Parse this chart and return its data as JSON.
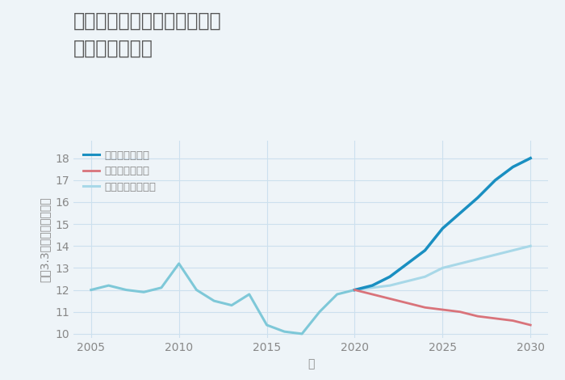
{
  "title": "三重県三重郡川越町当新田の\n土地の価格推移",
  "xlabel": "年",
  "ylabel": "坪（3.3㎡）単価（万円）",
  "background_color": "#eef4f8",
  "plot_background": "#eef4f8",
  "ylim": [
    9.8,
    18.8
  ],
  "xlim": [
    2004,
    2031
  ],
  "yticks": [
    10,
    11,
    12,
    13,
    14,
    15,
    16,
    17,
    18
  ],
  "xticks": [
    2005,
    2010,
    2015,
    2020,
    2025,
    2030
  ],
  "historical_years": [
    2005,
    2006,
    2007,
    2008,
    2009,
    2010,
    2011,
    2012,
    2013,
    2014,
    2015,
    2016,
    2017,
    2018,
    2019,
    2020
  ],
  "historical_values": [
    12.0,
    12.2,
    12.0,
    11.9,
    12.1,
    13.2,
    12.0,
    11.5,
    11.3,
    11.8,
    10.4,
    10.1,
    10.0,
    11.0,
    11.8,
    12.0
  ],
  "future_years": [
    2020,
    2021,
    2022,
    2023,
    2024,
    2025,
    2026,
    2027,
    2028,
    2029,
    2030
  ],
  "good_values": [
    12.0,
    12.2,
    12.6,
    13.2,
    13.8,
    14.8,
    15.5,
    16.2,
    17.0,
    17.6,
    18.0
  ],
  "bad_values": [
    12.0,
    11.8,
    11.6,
    11.4,
    11.2,
    11.1,
    11.0,
    10.8,
    10.7,
    10.6,
    10.4
  ],
  "normal_values": [
    12.0,
    12.1,
    12.2,
    12.4,
    12.6,
    13.0,
    13.2,
    13.4,
    13.6,
    13.8,
    14.0
  ],
  "color_historical": "#7ec8d8",
  "color_good": "#1a8fc1",
  "color_bad": "#d9737a",
  "color_normal": "#a8d8e8",
  "legend_labels": [
    "グッドシナリオ",
    "バッドシナリオ",
    "ノーマルシナリオ"
  ],
  "grid_color": "#cce0ee",
  "title_color": "#555555",
  "tick_color": "#888888",
  "title_fontsize": 17,
  "label_fontsize": 10
}
